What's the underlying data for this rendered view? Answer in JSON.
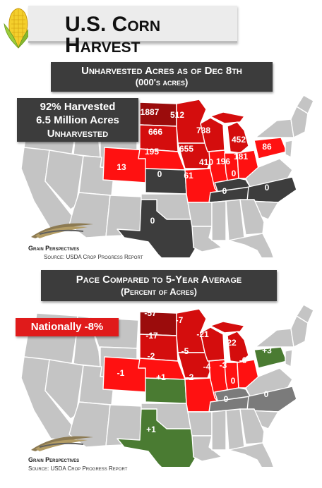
{
  "title": "U.S. Corn Harvest",
  "colors": {
    "dark_red": "#9b0c0c",
    "red": "#d40d0d",
    "bright_red": "#ff1111",
    "dark_gray": "#3d3d3d",
    "gray": "#c4c4c4",
    "green": "#4a7b32",
    "header_bg": "#3c3c3c"
  },
  "icons": {
    "corn": "corn-icon",
    "logo": "grain-perspectives-logo"
  },
  "map1": {
    "title_line1": "Unharvested Acres as of Dec 8th",
    "title_line2": "(000's acres)",
    "summary_line1": "92% Harvested",
    "summary_line2": "6.5 Million Acres",
    "summary_line3": "Unharvested",
    "logo_text": "Grain Perspectives",
    "source_prefix": "Source: ",
    "source_text": "USDA Crop Progress Report",
    "labels": {
      "nd": "1887",
      "mn": "512",
      "sd": "666",
      "wi": "738",
      "mi": "452",
      "ne": "195",
      "ia": "655",
      "oh": "181",
      "pa": "86",
      "co": "13",
      "ks": "0",
      "il": "410",
      "in": "196",
      "mo": "61",
      "ky": "0",
      "tn": "0",
      "nc": "0",
      "tx": "0"
    }
  },
  "map2": {
    "title_line1": "Pace Compared to 5-Year Average",
    "title_line2": "(Percent of Acres)",
    "national": "Nationally -8%",
    "logo_text": "Grain Perspectives",
    "source_prefix": "Source: ",
    "source_text": "USDA Crop Progress Report",
    "labels": {
      "nd": "-57",
      "mn": "-7",
      "sd": "-17",
      "wi": "-21",
      "mi": "-22",
      "ne": "-2",
      "ia": "-5",
      "oh": "-6",
      "pa": "+3",
      "co": "-1",
      "ks": "+1",
      "il": "-4",
      "in": "-3",
      "mo": "-2",
      "ky": "0",
      "tn": "0",
      "nc": "0",
      "tx": "+1"
    }
  }
}
